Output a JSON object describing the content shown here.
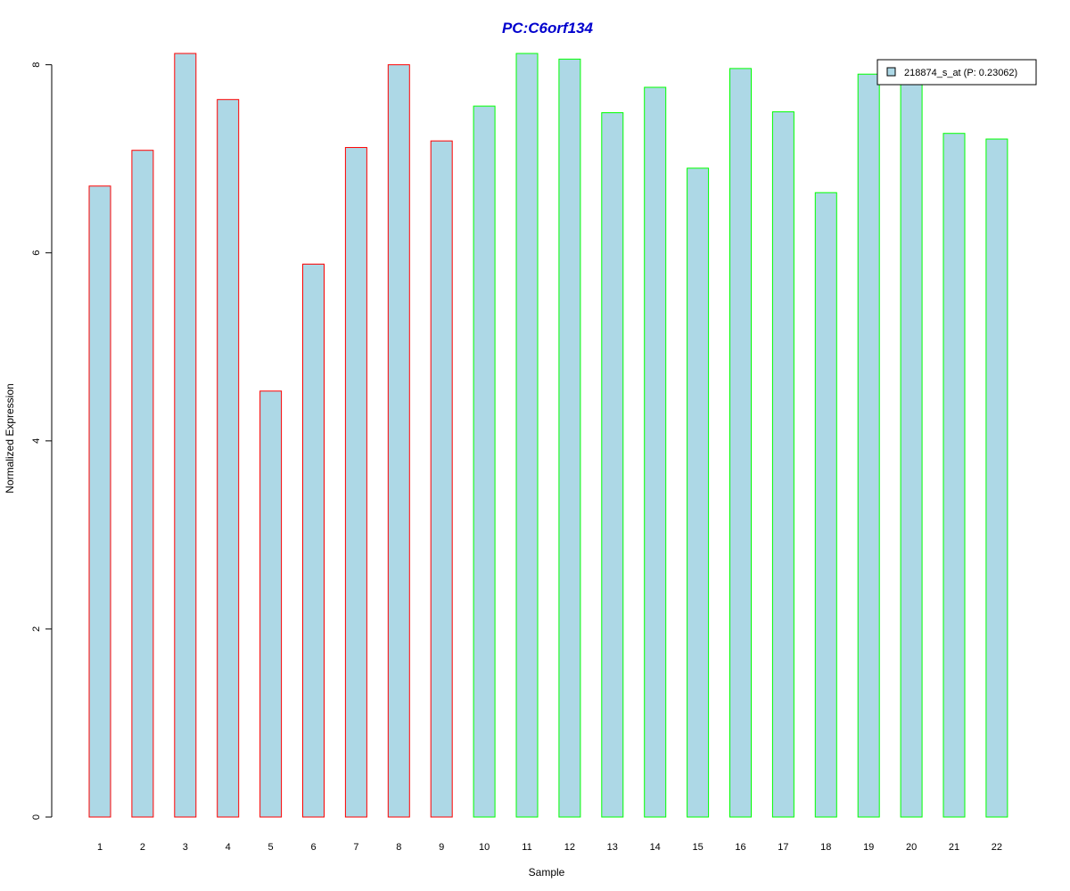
{
  "chart_data": {
    "type": "bar",
    "title": "PC:C6orf134",
    "xlabel": "Sample",
    "ylabel": "Normalized Expression",
    "categories": [
      "1",
      "2",
      "3",
      "4",
      "5",
      "6",
      "7",
      "8",
      "9",
      "10",
      "11",
      "12",
      "13",
      "14",
      "15",
      "16",
      "17",
      "18",
      "19",
      "20",
      "21",
      "22"
    ],
    "series": [
      {
        "name": "218874_s_at (P: 0.23062)",
        "values": [
          6.71,
          7.09,
          8.12,
          7.63,
          4.53,
          5.88,
          7.12,
          8.0,
          7.19,
          7.56,
          8.12,
          8.06,
          7.49,
          7.76,
          6.9,
          7.96,
          7.5,
          6.64,
          7.9,
          7.8,
          7.27,
          7.21
        ]
      }
    ],
    "groups": [
      {
        "samples": [
          1,
          2,
          3,
          4,
          5,
          6,
          7,
          8,
          9
        ],
        "border_color": "#ff0000"
      },
      {
        "samples": [
          10,
          11,
          12,
          13,
          14,
          15,
          16,
          17,
          18,
          19,
          20,
          21,
          22
        ],
        "border_color": "#00ff00"
      }
    ],
    "yticks": [
      0,
      2,
      4,
      6,
      8
    ],
    "ylim": [
      0,
      8.12
    ],
    "grid": false,
    "legend_position": "top-right",
    "colors": {
      "bar_fill": "#add8e6",
      "title": "#0000cd",
      "axis": "#000000"
    }
  }
}
